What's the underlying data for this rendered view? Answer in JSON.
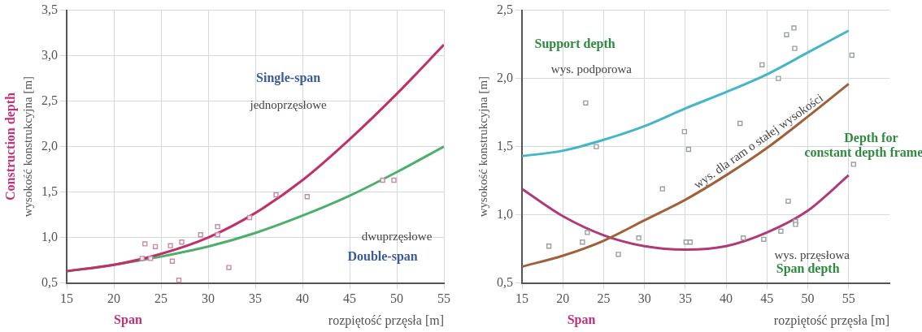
{
  "chart_data": [
    {
      "type": "line",
      "xlabel": "rozpiętość przęsła [m]",
      "ylabel": "wysokość konstrukcyjna [m]",
      "xlim": [
        15,
        55
      ],
      "xticks": [
        15,
        20,
        25,
        30,
        35,
        40,
        45,
        50,
        55
      ],
      "ylim": [
        0.5,
        3.5
      ],
      "yticks": [
        {
          "value": 0.5,
          "label": "0,5"
        },
        {
          "value": 1.0,
          "label": "1,0"
        },
        {
          "value": 1.5,
          "label": "1,5"
        },
        {
          "value": 2.0,
          "label": "2,0"
        },
        {
          "value": 2.5,
          "label": "2,5"
        },
        {
          "value": 3.0,
          "label": "3,0"
        },
        {
          "value": 3.5,
          "label": "3,5"
        }
      ],
      "grid": true,
      "legend": false,
      "series": [
        {
          "color": "#c0306a",
          "marker": "none",
          "x": [
            15,
            20,
            25,
            30,
            35,
            40,
            45,
            50,
            55
          ],
          "values": [
            0.63,
            0.7,
            0.82,
            1.0,
            1.27,
            1.63,
            2.08,
            2.58,
            3.12
          ]
        },
        {
          "color": "#4caf6a",
          "marker": "none",
          "x": [
            15,
            20,
            25,
            30,
            35,
            40,
            45,
            50,
            55
          ],
          "values": [
            0.63,
            0.7,
            0.79,
            0.9,
            1.05,
            1.24,
            1.46,
            1.72,
            2.0
          ]
        },
        {
          "type": "scatter",
          "color": "#c98aa5",
          "marker": "square",
          "x": [
            23.3,
            24.4,
            23.0,
            23.9,
            26.2,
            26.0,
            27.2,
            26.9,
            29.2,
            31.0,
            31.0,
            32.2,
            34.4,
            37.2,
            40.5,
            48.5,
            49.7
          ],
          "values": [
            0.93,
            0.9,
            0.77,
            0.77,
            0.74,
            0.91,
            0.95,
            0.53,
            1.03,
            1.12,
            1.03,
            0.67,
            1.22,
            1.47,
            1.45,
            1.63,
            1.63
          ]
        }
      ],
      "annotations": [
        "Construction depth",
        "Span",
        "Single-span",
        "jednoprzęsłowe",
        "dwuprzęsłowe",
        "Double-span"
      ]
    },
    {
      "type": "line",
      "xlabel": "rozpiętość przęsła [m]",
      "ylabel": "wysokość konstrukcyjna [m]",
      "xlim": [
        15,
        60
      ],
      "xticks": [
        15,
        20,
        25,
        30,
        35,
        40,
        45,
        50,
        55
      ],
      "ylim": [
        0.5,
        2.5
      ],
      "yticks": [
        {
          "value": 0.5,
          "label": "0,5"
        },
        {
          "value": 1.0,
          "label": "1,0"
        },
        {
          "value": 1.5,
          "label": "1,5"
        },
        {
          "value": 2.0,
          "label": "2,0"
        },
        {
          "value": 2.5,
          "label": "2,5"
        }
      ],
      "grid": true,
      "legend": false,
      "series": [
        {
          "color": "#45b5c8",
          "marker": "none",
          "x": [
            15,
            20,
            25,
            30,
            35,
            40,
            45,
            50,
            55
          ],
          "values": [
            1.43,
            1.47,
            1.55,
            1.65,
            1.78,
            1.9,
            2.03,
            2.19,
            2.35
          ]
        },
        {
          "color": "#a0603a",
          "marker": "none",
          "x": [
            15,
            20,
            25,
            30,
            35,
            40,
            45,
            50,
            55
          ],
          "values": [
            0.62,
            0.7,
            0.81,
            0.96,
            1.11,
            1.29,
            1.49,
            1.72,
            1.96
          ]
        },
        {
          "color": "#b03a78",
          "marker": "none",
          "x": [
            15,
            20,
            25,
            30,
            35,
            40,
            45,
            50,
            55
          ],
          "values": [
            1.19,
            0.99,
            0.85,
            0.77,
            0.745,
            0.77,
            0.87,
            1.03,
            1.29
          ]
        },
        {
          "type": "scatter",
          "color": "#9aa0a0",
          "marker": "square",
          "x": [
            18.3,
            22.4,
            22.8,
            23.0,
            24.1,
            26.8,
            29.3,
            32.2,
            34.9,
            35.4,
            35.1,
            35.6,
            41.7,
            42.1,
            44.4,
            44.6,
            46.4,
            46.7,
            47.4,
            48.3,
            48.4,
            47.6,
            48.5,
            48.5,
            55.4,
            55.6
          ],
          "values": [
            0.77,
            0.8,
            1.82,
            0.87,
            1.5,
            0.71,
            0.83,
            1.19,
            1.61,
            1.48,
            0.8,
            0.8,
            1.67,
            0.83,
            2.1,
            0.82,
            2.0,
            0.88,
            2.32,
            2.37,
            2.22,
            1.1,
            0.95,
            0.93,
            2.17,
            1.37
          ]
        }
      ],
      "annotations": [
        "Span",
        "Support depth",
        "wys. podporowa",
        "wys. dla ram o stałej wysokości",
        "Depth for",
        "constant depth frame",
        "wys. przęsłowa",
        "Span depth"
      ]
    }
  ]
}
